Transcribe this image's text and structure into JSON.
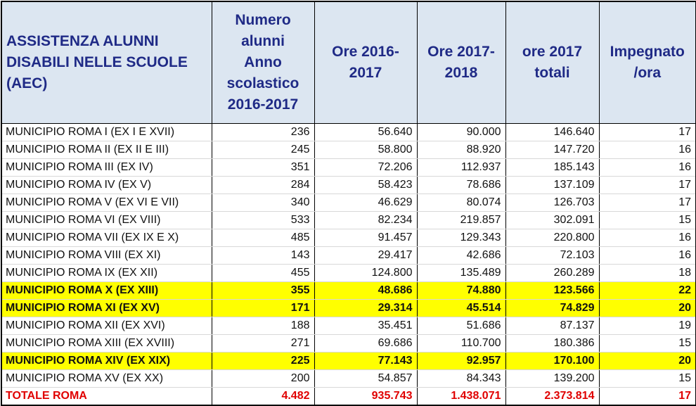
{
  "header": {
    "col0": "ASSISTENZA ALUNNI DISABILI NELLE SCUOLE (AEC)",
    "col1": "Numero alunni Anno scolastico 2016-2017",
    "col2": "Ore 2016-2017",
    "col3": "Ore 2017-2018",
    "col4": "ore 2017 totali",
    "col5": "Impegnato /ora"
  },
  "rows": [
    {
      "name": "MUNICIPIO ROMA I (EX I E XVII)",
      "alunni": "236",
      "ore1617": "56.640",
      "ore1718": "90.000",
      "totali": "146.640",
      "ora": "17",
      "highlight": false
    },
    {
      "name": "MUNICIPIO ROMA II (EX II E III)",
      "alunni": "245",
      "ore1617": "58.800",
      "ore1718": "88.920",
      "totali": "147.720",
      "ora": "16",
      "highlight": false
    },
    {
      "name": "MUNICIPIO ROMA III (EX IV)",
      "alunni": "351",
      "ore1617": "72.206",
      "ore1718": "112.937",
      "totali": "185.143",
      "ora": "16",
      "highlight": false
    },
    {
      "name": "MUNICIPIO ROMA IV (EX V)",
      "alunni": "284",
      "ore1617": "58.423",
      "ore1718": "78.686",
      "totali": "137.109",
      "ora": "17",
      "highlight": false
    },
    {
      "name": "MUNICIPIO ROMA V (EX VI E VII)",
      "alunni": "340",
      "ore1617": "46.629",
      "ore1718": "80.074",
      "totali": "126.703",
      "ora": "17",
      "highlight": false
    },
    {
      "name": "MUNICIPIO ROMA VI (EX VIII)",
      "alunni": "533",
      "ore1617": "82.234",
      "ore1718": "219.857",
      "totali": "302.091",
      "ora": "15",
      "highlight": false
    },
    {
      "name": "MUNICIPIO ROMA VII (EX IX E X)",
      "alunni": "485",
      "ore1617": "91.457",
      "ore1718": "129.343",
      "totali": "220.800",
      "ora": "16",
      "highlight": false
    },
    {
      "name": "MUNICIPIO ROMA VIII (EX XI)",
      "alunni": "143",
      "ore1617": "29.417",
      "ore1718": "42.686",
      "totali": "72.103",
      "ora": "16",
      "highlight": false
    },
    {
      "name": "MUNICIPIO ROMA IX (EX XII)",
      "alunni": "455",
      "ore1617": "124.800",
      "ore1718": "135.489",
      "totali": "260.289",
      "ora": "18",
      "highlight": false
    },
    {
      "name": "MUNICIPIO ROMA X (EX XIII)",
      "alunni": "355",
      "ore1617": "48.686",
      "ore1718": "74.880",
      "totali": "123.566",
      "ora": "22",
      "highlight": true
    },
    {
      "name": "MUNICIPIO ROMA XI (EX XV)",
      "alunni": "171",
      "ore1617": "29.314",
      "ore1718": "45.514",
      "totali": "74.829",
      "ora": "20",
      "highlight": true
    },
    {
      "name": "MUNICIPIO ROMA XII (EX XVI)",
      "alunni": "188",
      "ore1617": "35.451",
      "ore1718": "51.686",
      "totali": "87.137",
      "ora": "19",
      "highlight": false
    },
    {
      "name": "MUNICIPIO ROMA XIII (EX XVIII)",
      "alunni": "271",
      "ore1617": "69.686",
      "ore1718": "110.700",
      "totali": "180.386",
      "ora": "15",
      "highlight": false
    },
    {
      "name": "MUNICIPIO ROMA XIV (EX XIX)",
      "alunni": "225",
      "ore1617": "77.143",
      "ore1718": "92.957",
      "totali": "170.100",
      "ora": "20",
      "highlight": true
    },
    {
      "name": "MUNICIPIO ROMA XV (EX XX)",
      "alunni": "200",
      "ore1617": "54.857",
      "ore1718": "84.343",
      "totali": "139.200",
      "ora": "15",
      "highlight": false
    }
  ],
  "total": {
    "name": "TOTALE ROMA",
    "alunni": "4.482",
    "ore1617": "935.743",
    "ore1718": "1.438.071",
    "totali": "2.373.814",
    "ora": "17"
  },
  "colors": {
    "header_bg": "#dce6f1",
    "header_text": "#1f2a86",
    "highlight": "#ffff00",
    "total_text": "#e00000"
  }
}
